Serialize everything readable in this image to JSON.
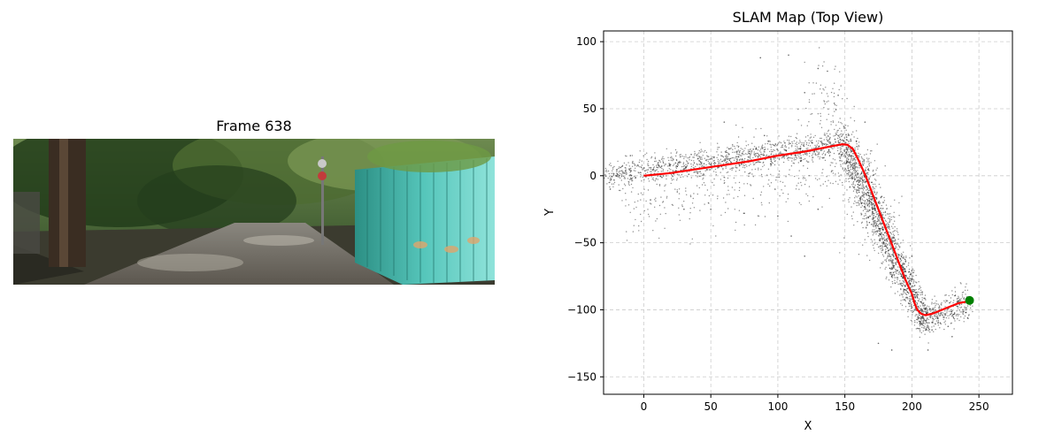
{
  "frame_panel": {
    "title": "Frame 638"
  },
  "chart_data": {
    "type": "scatter",
    "title": "SLAM Map (Top View)",
    "xlabel": "X",
    "ylabel": "Y",
    "xlim": [
      -30,
      275
    ],
    "ylim": [
      -163,
      108
    ],
    "xticks": [
      0,
      50,
      100,
      150,
      200,
      250
    ],
    "yticks": [
      -150,
      -100,
      -50,
      0,
      50,
      100
    ],
    "grid": true,
    "trajectory": {
      "color": "#ff0000",
      "x": [
        0,
        20,
        40,
        60,
        80,
        100,
        120,
        140,
        148,
        152,
        156,
        160,
        165,
        170,
        175,
        180,
        185,
        190,
        195,
        198,
        200,
        202,
        204,
        207,
        210,
        215,
        220,
        225,
        230,
        235,
        240,
        243
      ],
      "y": [
        0,
        2,
        5,
        8,
        11,
        15,
        18,
        22,
        23.5,
        23,
        20,
        12,
        1,
        -12,
        -25,
        -38,
        -51,
        -64,
        -77,
        -84,
        -88,
        -95,
        -100,
        -103,
        -104,
        -103,
        -101,
        -99,
        -97,
        -95,
        -94,
        -93
      ]
    },
    "end_marker": {
      "x": 243,
      "y": -93,
      "color": "#008000"
    },
    "point_cloud": {
      "color": "#000000",
      "segments": [
        {
          "from": [
            -28,
            0
          ],
          "to": [
            150,
            24
          ],
          "spread": 5,
          "count": 1100
        },
        {
          "from": [
            150,
            22
          ],
          "to": [
            200,
            -88
          ],
          "spread": 9,
          "count": 1300
        },
        {
          "from": [
            200,
            -88
          ],
          "to": [
            210,
            -106
          ],
          "spread": 7,
          "count": 200
        },
        {
          "from": [
            205,
            -108
          ],
          "to": [
            243,
            -95
          ],
          "spread": 6,
          "count": 350
        },
        {
          "from": [
            -15,
            -20
          ],
          "to": [
            150,
            10
          ],
          "spread": 15,
          "count": 350
        },
        {
          "from": [
            130,
            60
          ],
          "to": [
            180,
            -40
          ],
          "spread": 18,
          "count": 250
        }
      ],
      "scattered": [
        [
          87,
          88
        ],
        [
          108,
          90
        ],
        [
          130,
          80
        ],
        [
          137,
          78
        ],
        [
          120,
          62
        ],
        [
          145,
          60
        ],
        [
          60,
          40
        ],
        [
          90,
          30
        ],
        [
          30,
          -25
        ],
        [
          50,
          -25
        ],
        [
          75,
          -28
        ],
        [
          100,
          -30
        ],
        [
          110,
          -45
        ],
        [
          120,
          -60
        ],
        [
          130,
          -25
        ],
        [
          185,
          -75
        ],
        [
          195,
          -85
        ],
        [
          175,
          -125
        ],
        [
          185,
          -130
        ],
        [
          215,
          -115
        ],
        [
          230,
          -120
        ],
        [
          -10,
          15
        ],
        [
          -25,
          -10
        ],
        [
          5,
          -18
        ],
        [
          25,
          -12
        ],
        [
          165,
          40
        ],
        [
          170,
          -5
        ],
        [
          200,
          -60
        ],
        [
          145,
          30
        ],
        [
          212,
          -130
        ]
      ]
    }
  }
}
